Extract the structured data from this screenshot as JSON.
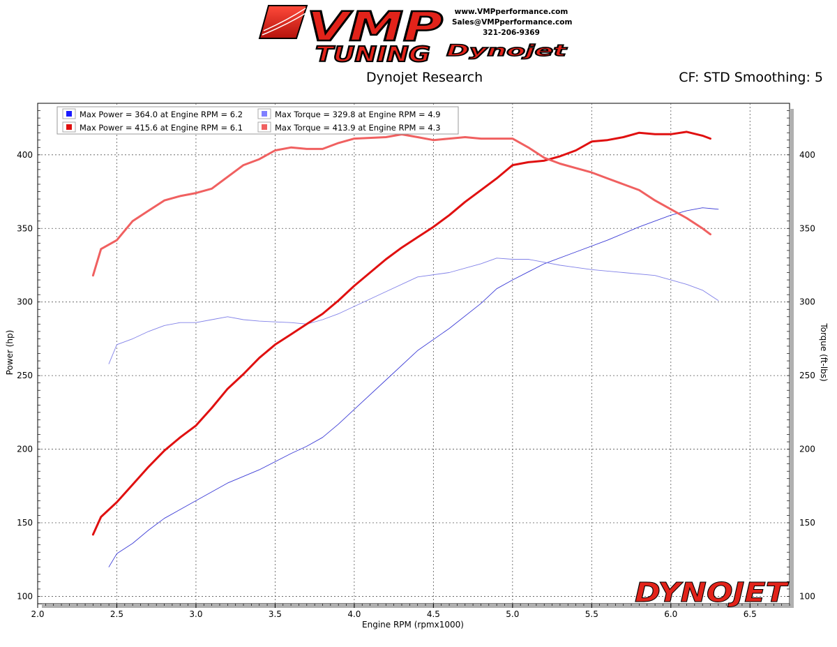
{
  "branding": {
    "logo_main": "VMP",
    "logo_sub": "TUNING",
    "partner_logo": "Dynojet",
    "corner_logo": "DYNOJET",
    "website": "www.VMPperformance.com",
    "email": "Sales@VMPperformance.com",
    "phone": "321-206-9369"
  },
  "header": {
    "left_title": "Dynojet Research",
    "right_title": "CF: STD Smoothing: 5"
  },
  "colors": {
    "run1": "#3b3bd6",
    "run1_torque": "#8080e8",
    "run2": "#e01010",
    "run2_torque": "#f06060",
    "grid": "#555555",
    "logo_red": "#e2231a"
  },
  "chart_data": {
    "type": "line",
    "xlabel": "Engine RPM (rpmx1000)",
    "ylabel_left": "Power (hp)",
    "ylabel_right": "Torque (ft-lbs)",
    "xlim": [
      2.0,
      6.75
    ],
    "ylim": [
      95,
      435
    ],
    "x_ticks": [
      "2.0",
      "2.5",
      "3.0",
      "3.5",
      "4.0",
      "4.5",
      "5.0",
      "5.5",
      "6.0",
      "6.5"
    ],
    "y_ticks": [
      "100",
      "150",
      "200",
      "250",
      "300",
      "350",
      "400"
    ],
    "grid": true,
    "legend_position": "top-left",
    "legend": [
      "Max Power = 364.0 at Engine RPM = 6.2",
      "Max Torque = 329.8 at Engine RPM = 4.9",
      "Max Power = 415.6 at Engine RPM = 6.1",
      "Max Torque = 413.9 at Engine RPM = 4.3"
    ],
    "series": [
      {
        "name": "Max Power = 364.0 at Engine RPM = 6.2",
        "color": "#3b3bd6",
        "width": 0.9,
        "points": [
          [
            2.45,
            120
          ],
          [
            2.5,
            129
          ],
          [
            2.6,
            136
          ],
          [
            2.7,
            145
          ],
          [
            2.8,
            153
          ],
          [
            2.9,
            159
          ],
          [
            3.0,
            165
          ],
          [
            3.2,
            177
          ],
          [
            3.4,
            186
          ],
          [
            3.6,
            197
          ],
          [
            3.7,
            202
          ],
          [
            3.8,
            208
          ],
          [
            3.9,
            217
          ],
          [
            4.0,
            227
          ],
          [
            4.2,
            247
          ],
          [
            4.4,
            267
          ],
          [
            4.6,
            282
          ],
          [
            4.8,
            299
          ],
          [
            4.9,
            309
          ],
          [
            5.0,
            315
          ],
          [
            5.2,
            326
          ],
          [
            5.4,
            334
          ],
          [
            5.6,
            342
          ],
          [
            5.8,
            351
          ],
          [
            6.0,
            359
          ],
          [
            6.1,
            362
          ],
          [
            6.2,
            364
          ],
          [
            6.3,
            363
          ]
        ]
      },
      {
        "name": "Max Torque = 329.8 at Engine RPM = 4.9",
        "color": "#8080e8",
        "width": 0.9,
        "points": [
          [
            2.45,
            258
          ],
          [
            2.5,
            271
          ],
          [
            2.6,
            275
          ],
          [
            2.7,
            280
          ],
          [
            2.8,
            284
          ],
          [
            2.9,
            286
          ],
          [
            3.0,
            286
          ],
          [
            3.1,
            288
          ],
          [
            3.2,
            290
          ],
          [
            3.3,
            288
          ],
          [
            3.4,
            287
          ],
          [
            3.6,
            286
          ],
          [
            3.7,
            285
          ],
          [
            3.8,
            288
          ],
          [
            3.9,
            292
          ],
          [
            4.0,
            297
          ],
          [
            4.2,
            307
          ],
          [
            4.4,
            317
          ],
          [
            4.6,
            320
          ],
          [
            4.8,
            326
          ],
          [
            4.9,
            329.8
          ],
          [
            5.0,
            329
          ],
          [
            5.1,
            329
          ],
          [
            5.3,
            325
          ],
          [
            5.5,
            322
          ],
          [
            5.7,
            320
          ],
          [
            5.9,
            318
          ],
          [
            6.0,
            315
          ],
          [
            6.1,
            312
          ],
          [
            6.2,
            308
          ],
          [
            6.3,
            301
          ]
        ]
      },
      {
        "name": "Max Power = 415.6 at Engine RPM = 6.1",
        "color": "#e01010",
        "width": 3,
        "points": [
          [
            2.35,
            142
          ],
          [
            2.4,
            154
          ],
          [
            2.5,
            164
          ],
          [
            2.6,
            176
          ],
          [
            2.7,
            188
          ],
          [
            2.8,
            199
          ],
          [
            2.9,
            208
          ],
          [
            3.0,
            216
          ],
          [
            3.1,
            228
          ],
          [
            3.2,
            241
          ],
          [
            3.3,
            251
          ],
          [
            3.4,
            262
          ],
          [
            3.5,
            271
          ],
          [
            3.6,
            278
          ],
          [
            3.7,
            285
          ],
          [
            3.8,
            292
          ],
          [
            3.9,
            301
          ],
          [
            4.0,
            311
          ],
          [
            4.1,
            320
          ],
          [
            4.2,
            329
          ],
          [
            4.3,
            337
          ],
          [
            4.4,
            344
          ],
          [
            4.5,
            351
          ],
          [
            4.6,
            359
          ],
          [
            4.7,
            368
          ],
          [
            4.8,
            376
          ],
          [
            4.9,
            384
          ],
          [
            5.0,
            393
          ],
          [
            5.1,
            395
          ],
          [
            5.2,
            396
          ],
          [
            5.3,
            399
          ],
          [
            5.4,
            403
          ],
          [
            5.5,
            409
          ],
          [
            5.6,
            410
          ],
          [
            5.7,
            412
          ],
          [
            5.8,
            415
          ],
          [
            5.9,
            414
          ],
          [
            6.0,
            414
          ],
          [
            6.1,
            415.6
          ],
          [
            6.2,
            413
          ],
          [
            6.25,
            411
          ]
        ]
      },
      {
        "name": "Max Torque = 413.9 at Engine RPM = 4.3",
        "color": "#f06060",
        "width": 3,
        "points": [
          [
            2.35,
            318
          ],
          [
            2.4,
            336
          ],
          [
            2.5,
            342
          ],
          [
            2.6,
            355
          ],
          [
            2.7,
            362
          ],
          [
            2.8,
            369
          ],
          [
            2.9,
            372
          ],
          [
            3.0,
            374
          ],
          [
            3.1,
            377
          ],
          [
            3.2,
            385
          ],
          [
            3.3,
            393
          ],
          [
            3.4,
            397
          ],
          [
            3.5,
            403
          ],
          [
            3.6,
            405
          ],
          [
            3.7,
            404
          ],
          [
            3.8,
            404
          ],
          [
            3.9,
            408
          ],
          [
            4.0,
            411
          ],
          [
            4.2,
            412
          ],
          [
            4.3,
            413.9
          ],
          [
            4.4,
            412
          ],
          [
            4.5,
            410
          ],
          [
            4.6,
            411
          ],
          [
            4.7,
            412
          ],
          [
            4.8,
            411
          ],
          [
            4.9,
            411
          ],
          [
            5.0,
            411
          ],
          [
            5.1,
            405
          ],
          [
            5.2,
            398
          ],
          [
            5.3,
            394
          ],
          [
            5.4,
            391
          ],
          [
            5.5,
            388
          ],
          [
            5.6,
            384
          ],
          [
            5.7,
            380
          ],
          [
            5.8,
            376
          ],
          [
            5.9,
            369
          ],
          [
            6.0,
            363
          ],
          [
            6.1,
            357
          ],
          [
            6.2,
            350
          ],
          [
            6.25,
            346
          ]
        ]
      }
    ]
  }
}
